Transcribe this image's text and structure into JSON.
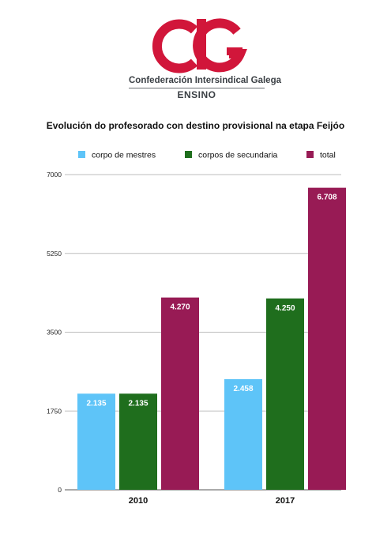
{
  "header": {
    "logo_text": "CIG",
    "org_name": "Confederación Intersindical Galega",
    "org_sub": "ENSINO"
  },
  "colors": {
    "brand_red": "#d1163a",
    "brand_dark": "#3a3f44"
  },
  "chart_data": {
    "type": "bar",
    "title": "Evolución do profesorado con destino provisional na etapa Feijóo",
    "xlabel": "",
    "ylabel": "",
    "categories": [
      "2010",
      "2017"
    ],
    "series": [
      {
        "name": "corpo de mestres",
        "color": "#5ec4f8",
        "values": [
          2135,
          2458
        ],
        "labels": [
          "2.135",
          "2.458"
        ]
      },
      {
        "name": "corpos de secundaria",
        "color": "#1f6e1d",
        "values": [
          2135,
          4250
        ],
        "labels": [
          "2.135",
          "4.250"
        ]
      },
      {
        "name": "total",
        "color": "#981b55",
        "values": [
          4270,
          6708
        ],
        "labels": [
          "4.270",
          "6.708"
        ]
      }
    ],
    "ylim": [
      0,
      7000
    ],
    "yticks": [
      0,
      1750,
      3500,
      5250,
      7000
    ],
    "grid": true,
    "legend": "top-left"
  }
}
